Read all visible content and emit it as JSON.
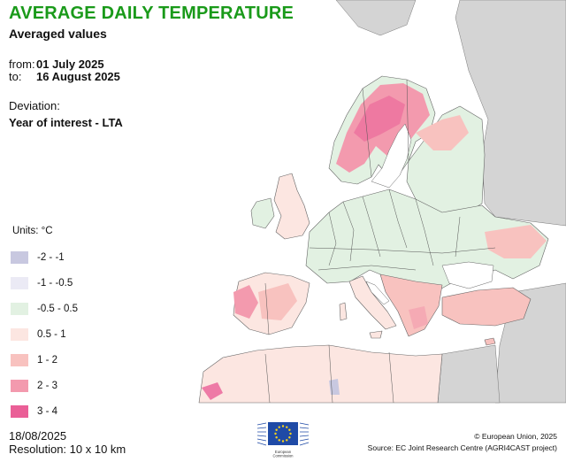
{
  "title": "AVERAGE DAILY TEMPERATURE",
  "subtitle": "Averaged values",
  "period": {
    "from_label": "from:",
    "from": "01 July 2025",
    "to_label": "to:",
    "to": "16 August 2025"
  },
  "deviation": {
    "label": "Deviation:",
    "value": "Year of interest - LTA"
  },
  "legend": {
    "units": "Units: °C",
    "classes": [
      {
        "label": "-2 - -1",
        "color": "#c8c8e0"
      },
      {
        "label": "-1 - -0.5",
        "color": "#ebeaf5"
      },
      {
        "label": "-0.5 - 0.5",
        "color": "#e2f1e2"
      },
      {
        "label": "0.5 - 1",
        "color": "#fce6e1"
      },
      {
        "label": "1 - 2",
        "color": "#f8c2bf"
      },
      {
        "label": "2 - 3",
        "color": "#f39aae"
      },
      {
        "label": "3 - 4",
        "color": "#ea5f97"
      }
    ]
  },
  "footer": {
    "date": "18/08/2025",
    "resolution": "Resolution: 10 x 10 km",
    "copyright": "© European Union, 2025",
    "source": "Source: EC Joint Research Centre (AGRI4CAST project)",
    "logo_text": "European Commission"
  },
  "colors": {
    "sea": "#ffffff",
    "no_data": "#d4d4d4",
    "border": "#555555",
    "eu_blue": "#1f4aa6",
    "eu_star": "#ffd617",
    "title": "#1a9a1a"
  }
}
